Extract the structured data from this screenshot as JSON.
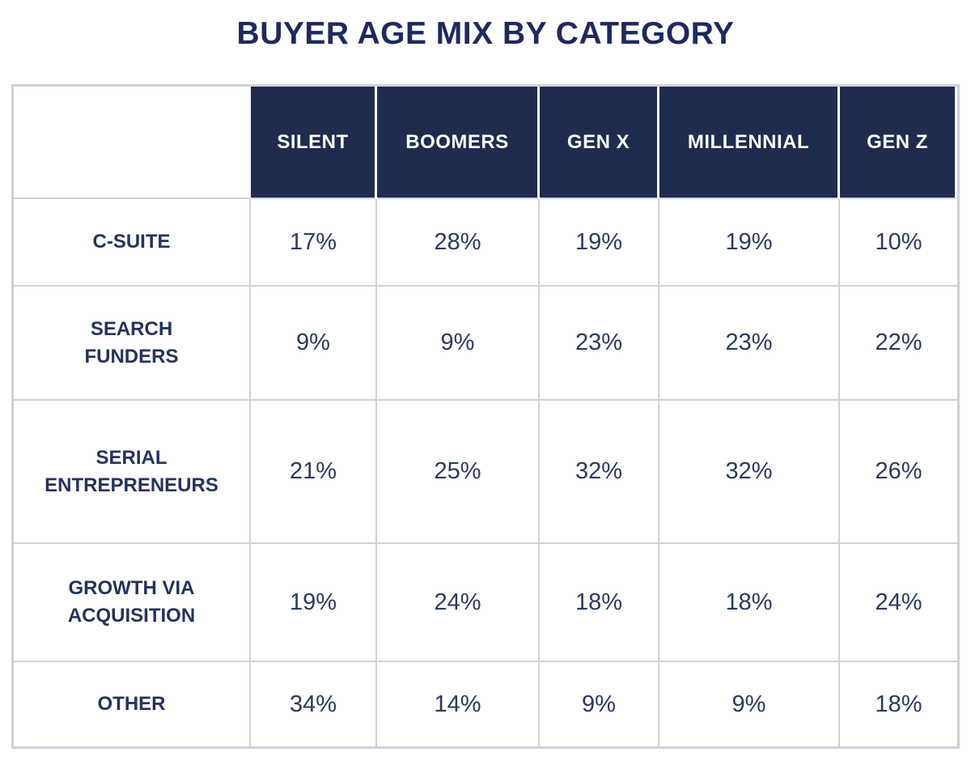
{
  "page": {
    "title": "BUYER AGE MIX BY CATEGORY"
  },
  "colors": {
    "title_text": "#1e2a5e",
    "header_bg": "#1f2c4e",
    "header_text": "#ffffff",
    "label_text": "#24335a",
    "value_text": "#2b3a60",
    "border": "#cdd2da"
  },
  "chart_data": {
    "type": "table",
    "title": "BUYER AGE MIX BY CATEGORY",
    "unit": "%",
    "columns": [
      "SILENT",
      "BOOMERS",
      "GEN X",
      "MILLENNIAL",
      "GEN Z"
    ],
    "rows": [
      {
        "label": "C-SUITE",
        "values": [
          "17%",
          "28%",
          "19%",
          "19%",
          "10%"
        ]
      },
      {
        "label": "SEARCH\nFUNDERS",
        "values": [
          "9%",
          "9%",
          "23%",
          "23%",
          "22%"
        ]
      },
      {
        "label": "SERIAL\nENTREPRENEURS",
        "values": [
          "21%",
          "25%",
          "32%",
          "32%",
          "26%"
        ]
      },
      {
        "label": "GROWTH VIA\nACQUISITION",
        "values": [
          "19%",
          "24%",
          "18%",
          "18%",
          "24%"
        ]
      },
      {
        "label": "OTHER",
        "values": [
          "34%",
          "14%",
          "9%",
          "9%",
          "18%"
        ]
      }
    ],
    "layout": {
      "legend": "none",
      "grid": "light-gray cell borders",
      "header_style": "dark navy cells with white separators"
    }
  }
}
